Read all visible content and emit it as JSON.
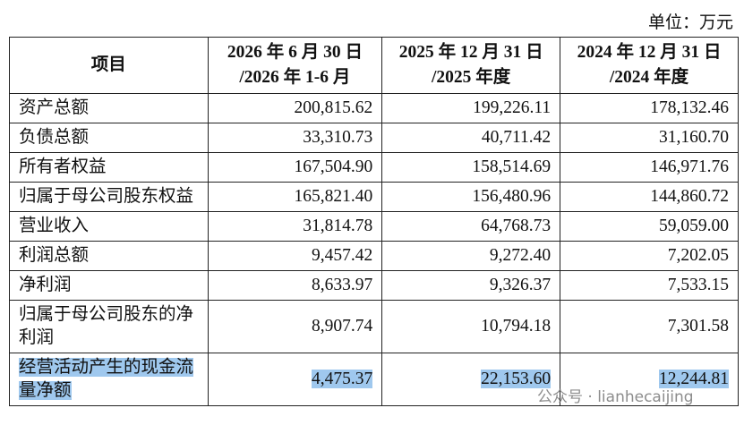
{
  "unit": "单位：万元",
  "table": {
    "header": [
      [
        "项目"
      ],
      [
        "2026 年 6 月 30 日",
        "/2026 年 1-6 月"
      ],
      [
        "2025 年 12 月 31 日",
        "/2025 年度"
      ],
      [
        "2024 年 12 月 31 日",
        "/2024 年度"
      ]
    ],
    "rows": [
      [
        [
          "资产总额"
        ],
        "200,815.62",
        "199,226.11",
        "178,132.46"
      ],
      [
        [
          "负债总额"
        ],
        "33,310.73",
        "40,711.42",
        "31,160.70"
      ],
      [
        [
          "所有者权益"
        ],
        "167,504.90",
        "158,514.69",
        "146,971.76"
      ],
      [
        [
          "归属于母公司股东权益"
        ],
        "165,821.40",
        "156,480.96",
        "144,860.72"
      ],
      [
        [
          "营业收入"
        ],
        "31,814.78",
        "64,768.73",
        "59,059.00"
      ],
      [
        [
          "利润总额"
        ],
        "9,457.42",
        "9,272.40",
        "7,202.05"
      ],
      [
        [
          "净利润"
        ],
        "8,633.97",
        "9,326.37",
        "7,533.15"
      ],
      [
        [
          "归属于母公司股东的净",
          "利润"
        ],
        "8,907.74",
        "10,794.18",
        "7,301.58"
      ],
      [
        [
          "经营活动产生的现金流",
          "量净额"
        ],
        "4,475.37",
        "22,153.60",
        "12,244.81"
      ]
    ]
  },
  "watermark": "公众号 · lianhecaijing"
}
